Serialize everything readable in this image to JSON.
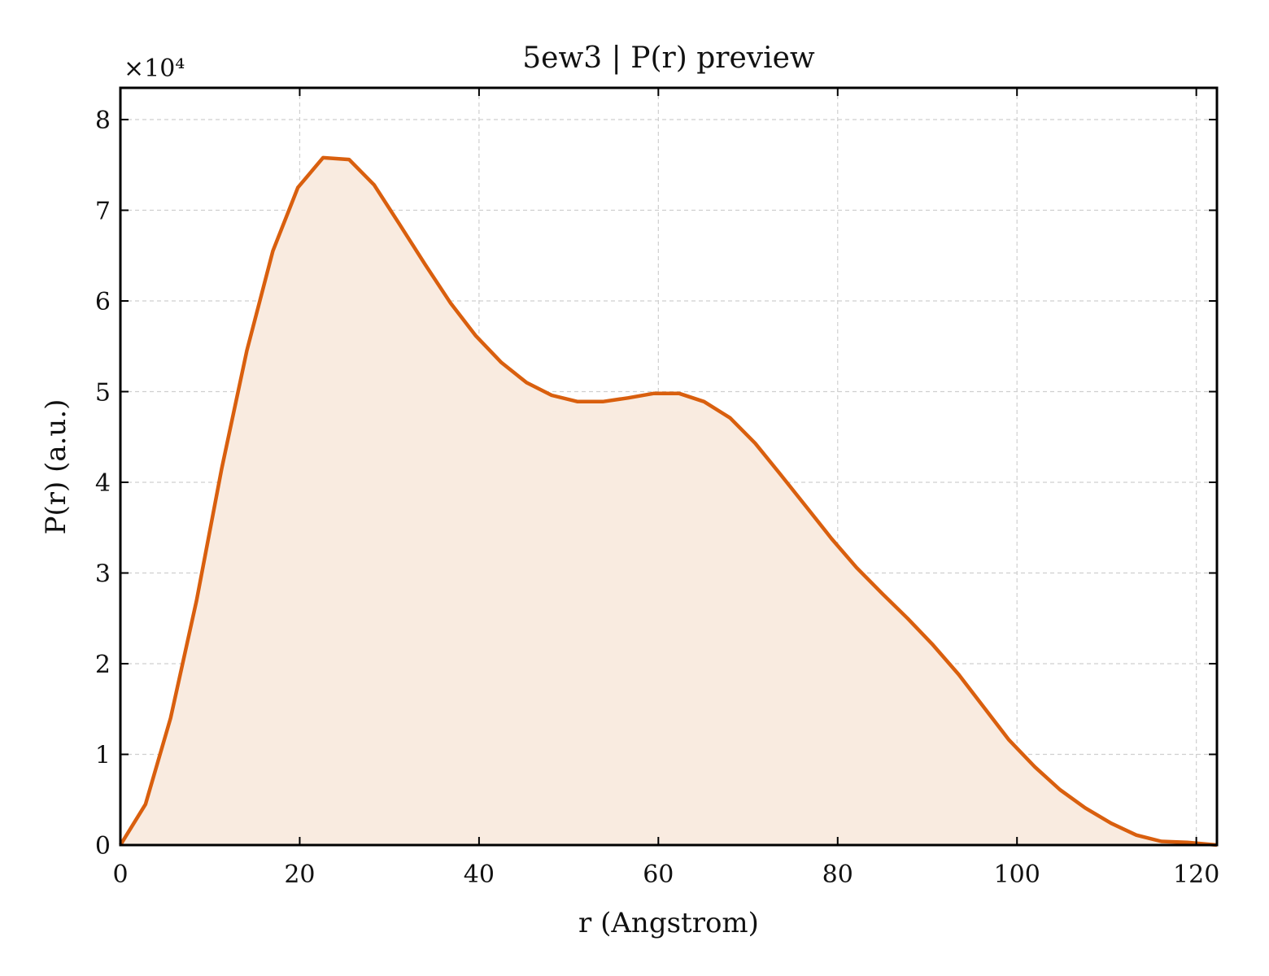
{
  "chart_data": {
    "type": "area",
    "title": "5ew3 | P(r) preview",
    "xlabel": "r (Angstrom)",
    "ylabel": "P(r) (a.u.)",
    "y_multiplier_label": "×10⁴",
    "xlim": [
      0,
      122.3
    ],
    "ylim": [
      0,
      8.35
    ],
    "x_ticks": [
      0,
      20,
      40,
      60,
      80,
      100,
      120
    ],
    "y_ticks": [
      0,
      1,
      2,
      3,
      4,
      5,
      6,
      7,
      8
    ],
    "grid": true,
    "line_color": "#d95f0e",
    "fill_color": "#f9ebe0",
    "series": [
      {
        "x": [
          0,
          2.8,
          5.6,
          8.5,
          11.3,
          14.1,
          17.0,
          19.8,
          22.6,
          25.5,
          28.3,
          31.1,
          34.0,
          36.8,
          39.6,
          42.5,
          45.3,
          48.1,
          51.0,
          53.8,
          56.6,
          59.5,
          62.3,
          65.1,
          68.0,
          70.8,
          73.6,
          76.5,
          79.3,
          82.1,
          85.0,
          87.8,
          90.6,
          93.5,
          96.3,
          99.1,
          102.0,
          104.8,
          107.6,
          110.5,
          113.3,
          116.1,
          119.0,
          122.3
        ],
        "y": [
          0.0,
          0.45,
          1.4,
          2.7,
          4.15,
          5.45,
          6.55,
          7.25,
          7.58,
          7.56,
          7.28,
          6.85,
          6.4,
          5.98,
          5.62,
          5.32,
          5.1,
          4.96,
          4.89,
          4.89,
          4.93,
          4.98,
          4.98,
          4.89,
          4.71,
          4.43,
          4.09,
          3.73,
          3.38,
          3.06,
          2.77,
          2.5,
          2.21,
          1.88,
          1.52,
          1.16,
          0.86,
          0.61,
          0.41,
          0.24,
          0.11,
          0.04,
          0.03,
          0.0
        ]
      }
    ]
  }
}
